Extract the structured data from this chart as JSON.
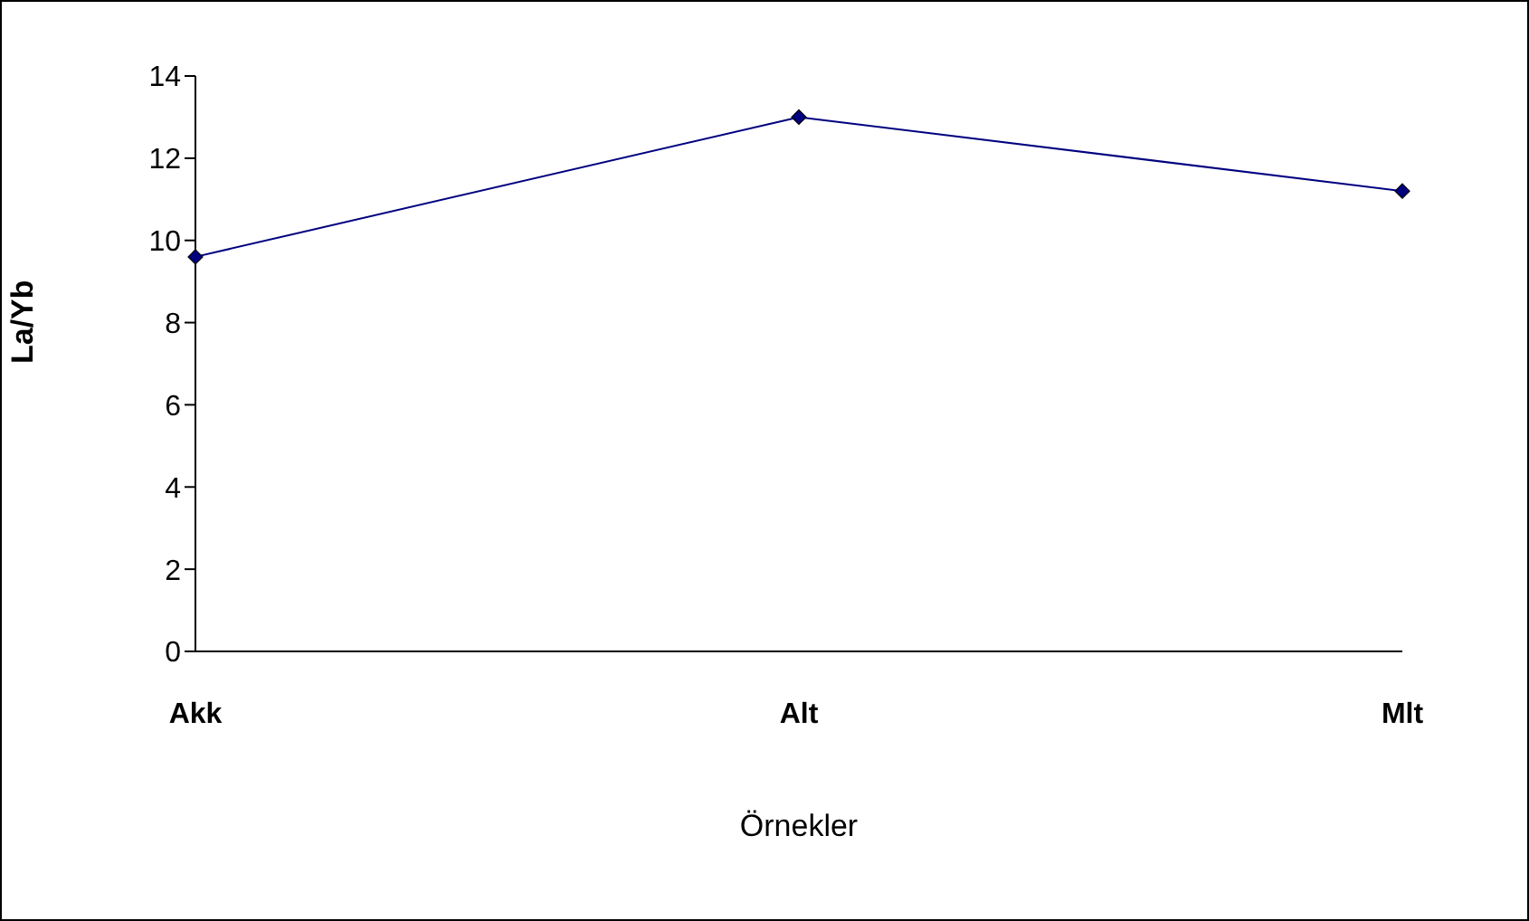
{
  "chart_data": {
    "type": "line",
    "xlabel": "Örnekler",
    "ylabel": "La/Yb",
    "categories": [
      "Akk",
      "Alt",
      "Mlt"
    ],
    "series": [
      {
        "color": "#000080",
        "values": [
          9.6,
          13.0,
          11.2
        ]
      }
    ],
    "ylim": [
      0,
      14
    ],
    "yticks": [
      0,
      2,
      4,
      6,
      8,
      10,
      12,
      14
    ],
    "grid": false,
    "legend": false,
    "marker": "diamond",
    "line_style": "solid"
  }
}
